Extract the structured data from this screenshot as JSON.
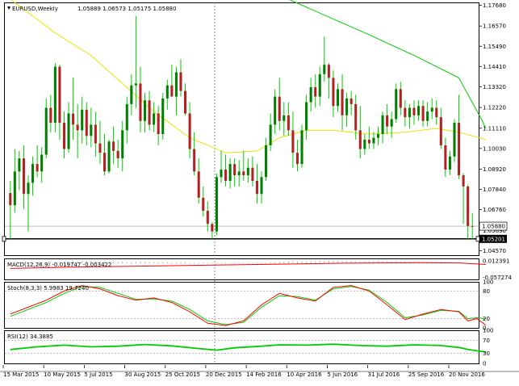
{
  "chart_data": {
    "type": "candlestick",
    "symbol_label": "EURUSD,Weekly",
    "ohlc_label": "1.05889 1.06573 1.05175 1.05880",
    "price_axis": {
      "ticks": [
        "1.17680",
        "1.16570",
        "1.15490",
        "1.14410",
        "1.13320",
        "1.12220",
        "1.11110",
        "1.10030",
        "1.08920",
        "1.07840",
        "1.06760",
        "1.04570"
      ],
      "current_price_label": "1.05880",
      "overlap_label": "1.05690",
      "support_label": "1.05201",
      "ylim": [
        1.0433,
        1.1783
      ]
    },
    "x_axis": {
      "ticks": [
        "15 Mar 2015",
        "10 May 2015",
        "5 Jul 2015",
        "30 Aug 2015",
        "25 Oct 2015",
        "20 Dec 2015",
        "14 Feb 2016",
        "10 Apr 2016",
        "5 Jun 2016",
        "31 Jul 2016",
        "25 Sep 2016",
        "20 Nov 2016"
      ]
    },
    "candles": [
      {
        "o": 1.0765,
        "h": 1.083,
        "l": 1.052,
        "c": 1.07
      },
      {
        "o": 1.07,
        "h": 1.1,
        "l": 1.066,
        "c": 1.088
      },
      {
        "o": 1.088,
        "h": 1.099,
        "l": 1.078,
        "c": 1.095
      },
      {
        "o": 1.095,
        "h": 1.102,
        "l": 1.068,
        "c": 1.076
      },
      {
        "o": 1.076,
        "h": 1.086,
        "l": 1.056,
        "c": 1.082
      },
      {
        "o": 1.082,
        "h": 1.096,
        "l": 1.075,
        "c": 1.092
      },
      {
        "o": 1.092,
        "h": 1.102,
        "l": 1.085,
        "c": 1.088
      },
      {
        "o": 1.088,
        "h": 1.101,
        "l": 1.082,
        "c": 1.097
      },
      {
        "o": 1.097,
        "h": 1.127,
        "l": 1.095,
        "c": 1.122
      },
      {
        "o": 1.122,
        "h": 1.129,
        "l": 1.109,
        "c": 1.114
      },
      {
        "o": 1.114,
        "h": 1.146,
        "l": 1.109,
        "c": 1.144
      },
      {
        "o": 1.144,
        "h": 1.145,
        "l": 1.105,
        "c": 1.114
      },
      {
        "o": 1.114,
        "h": 1.12,
        "l": 1.095,
        "c": 1.1
      },
      {
        "o": 1.1,
        "h": 1.125,
        "l": 1.098,
        "c": 1.119
      },
      {
        "o": 1.119,
        "h": 1.138,
        "l": 1.105,
        "c": 1.113
      },
      {
        "o": 1.113,
        "h": 1.124,
        "l": 1.095,
        "c": 1.11
      },
      {
        "o": 1.11,
        "h": 1.128,
        "l": 1.103,
        "c": 1.121
      },
      {
        "o": 1.121,
        "h": 1.125,
        "l": 1.102,
        "c": 1.107
      },
      {
        "o": 1.107,
        "h": 1.122,
        "l": 1.101,
        "c": 1.113
      },
      {
        "o": 1.113,
        "h": 1.12,
        "l": 1.096,
        "c": 1.103
      },
      {
        "o": 1.103,
        "h": 1.115,
        "l": 1.092,
        "c": 1.098
      },
      {
        "o": 1.098,
        "h": 1.108,
        "l": 1.086,
        "c": 1.088
      },
      {
        "o": 1.088,
        "h": 1.105,
        "l": 1.087,
        "c": 1.104
      },
      {
        "o": 1.104,
        "h": 1.112,
        "l": 1.092,
        "c": 1.099
      },
      {
        "o": 1.099,
        "h": 1.105,
        "l": 1.09,
        "c": 1.095
      },
      {
        "o": 1.095,
        "h": 1.115,
        "l": 1.088,
        "c": 1.11
      },
      {
        "o": 1.11,
        "h": 1.128,
        "l": 1.103,
        "c": 1.124
      },
      {
        "o": 1.124,
        "h": 1.14,
        "l": 1.118,
        "c": 1.134
      },
      {
        "o": 1.134,
        "h": 1.171,
        "l": 1.122,
        "c": 1.135
      },
      {
        "o": 1.135,
        "h": 1.144,
        "l": 1.109,
        "c": 1.115
      },
      {
        "o": 1.115,
        "h": 1.13,
        "l": 1.109,
        "c": 1.126
      },
      {
        "o": 1.126,
        "h": 1.131,
        "l": 1.11,
        "c": 1.113
      },
      {
        "o": 1.113,
        "h": 1.125,
        "l": 1.109,
        "c": 1.119
      },
      {
        "o": 1.119,
        "h": 1.123,
        "l": 1.102,
        "c": 1.108
      },
      {
        "o": 1.108,
        "h": 1.13,
        "l": 1.105,
        "c": 1.127
      },
      {
        "o": 1.127,
        "h": 1.137,
        "l": 1.121,
        "c": 1.134
      },
      {
        "o": 1.134,
        "h": 1.145,
        "l": 1.128,
        "c": 1.128
      },
      {
        "o": 1.128,
        "h": 1.144,
        "l": 1.118,
        "c": 1.141
      },
      {
        "o": 1.141,
        "h": 1.148,
        "l": 1.128,
        "c": 1.131
      },
      {
        "o": 1.131,
        "h": 1.135,
        "l": 1.118,
        "c": 1.119
      },
      {
        "o": 1.119,
        "h": 1.125,
        "l": 1.095,
        "c": 1.1
      },
      {
        "o": 1.1,
        "h": 1.109,
        "l": 1.086,
        "c": 1.088
      },
      {
        "o": 1.088,
        "h": 1.095,
        "l": 1.071,
        "c": 1.074
      },
      {
        "o": 1.074,
        "h": 1.08,
        "l": 1.064,
        "c": 1.067
      },
      {
        "o": 1.067,
        "h": 1.072,
        "l": 1.056,
        "c": 1.06
      },
      {
        "o": 1.06,
        "h": 1.061,
        "l": 1.052,
        "c": 1.056
      },
      {
        "o": 1.056,
        "h": 1.087,
        "l": 1.054,
        "c": 1.085
      },
      {
        "o": 1.085,
        "h": 1.099,
        "l": 1.082,
        "c": 1.089
      },
      {
        "o": 1.089,
        "h": 1.097,
        "l": 1.08,
        "c": 1.083
      },
      {
        "o": 1.083,
        "h": 1.095,
        "l": 1.079,
        "c": 1.092
      },
      {
        "o": 1.092,
        "h": 1.095,
        "l": 1.08,
        "c": 1.086
      },
      {
        "o": 1.086,
        "h": 1.094,
        "l": 1.08,
        "c": 1.088
      },
      {
        "o": 1.088,
        "h": 1.099,
        "l": 1.083,
        "c": 1.086
      },
      {
        "o": 1.086,
        "h": 1.095,
        "l": 1.082,
        "c": 1.09
      },
      {
        "o": 1.09,
        "h": 1.096,
        "l": 1.08,
        "c": 1.083
      },
      {
        "o": 1.083,
        "h": 1.092,
        "l": 1.071,
        "c": 1.076
      },
      {
        "o": 1.076,
        "h": 1.088,
        "l": 1.071,
        "c": 1.085
      },
      {
        "o": 1.085,
        "h": 1.106,
        "l": 1.083,
        "c": 1.102
      },
      {
        "o": 1.102,
        "h": 1.119,
        "l": 1.099,
        "c": 1.113
      },
      {
        "o": 1.113,
        "h": 1.132,
        "l": 1.108,
        "c": 1.128
      },
      {
        "o": 1.128,
        "h": 1.138,
        "l": 1.11,
        "c": 1.115
      },
      {
        "o": 1.115,
        "h": 1.125,
        "l": 1.107,
        "c": 1.118
      },
      {
        "o": 1.118,
        "h": 1.125,
        "l": 1.107,
        "c": 1.11
      },
      {
        "o": 1.11,
        "h": 1.12,
        "l": 1.09,
        "c": 1.098
      },
      {
        "o": 1.098,
        "h": 1.105,
        "l": 1.088,
        "c": 1.092
      },
      {
        "o": 1.092,
        "h": 1.113,
        "l": 1.09,
        "c": 1.11
      },
      {
        "o": 1.11,
        "h": 1.129,
        "l": 1.105,
        "c": 1.125
      },
      {
        "o": 1.125,
        "h": 1.138,
        "l": 1.12,
        "c": 1.133
      },
      {
        "o": 1.133,
        "h": 1.14,
        "l": 1.122,
        "c": 1.128
      },
      {
        "o": 1.128,
        "h": 1.144,
        "l": 1.123,
        "c": 1.14
      },
      {
        "o": 1.14,
        "h": 1.16,
        "l": 1.136,
        "c": 1.145
      },
      {
        "o": 1.145,
        "h": 1.146,
        "l": 1.127,
        "c": 1.138
      },
      {
        "o": 1.138,
        "h": 1.142,
        "l": 1.117,
        "c": 1.123
      },
      {
        "o": 1.123,
        "h": 1.135,
        "l": 1.12,
        "c": 1.132
      },
      {
        "o": 1.132,
        "h": 1.14,
        "l": 1.11,
        "c": 1.118
      },
      {
        "o": 1.118,
        "h": 1.13,
        "l": 1.112,
        "c": 1.127
      },
      {
        "o": 1.127,
        "h": 1.131,
        "l": 1.118,
        "c": 1.124
      },
      {
        "o": 1.124,
        "h": 1.129,
        "l": 1.105,
        "c": 1.11
      },
      {
        "o": 1.11,
        "h": 1.123,
        "l": 1.095,
        "c": 1.1
      },
      {
        "o": 1.1,
        "h": 1.108,
        "l": 1.097,
        "c": 1.105
      },
      {
        "o": 1.105,
        "h": 1.112,
        "l": 1.1,
        "c": 1.103
      },
      {
        "o": 1.103,
        "h": 1.109,
        "l": 1.1,
        "c": 1.106
      },
      {
        "o": 1.106,
        "h": 1.112,
        "l": 1.102,
        "c": 1.108
      },
      {
        "o": 1.108,
        "h": 1.12,
        "l": 1.103,
        "c": 1.118
      },
      {
        "o": 1.118,
        "h": 1.124,
        "l": 1.108,
        "c": 1.112
      },
      {
        "o": 1.112,
        "h": 1.12,
        "l": 1.106,
        "c": 1.116
      },
      {
        "o": 1.116,
        "h": 1.135,
        "l": 1.114,
        "c": 1.132
      },
      {
        "o": 1.132,
        "h": 1.136,
        "l": 1.118,
        "c": 1.122
      },
      {
        "o": 1.122,
        "h": 1.126,
        "l": 1.112,
        "c": 1.117
      },
      {
        "o": 1.117,
        "h": 1.124,
        "l": 1.111,
        "c": 1.122
      },
      {
        "o": 1.122,
        "h": 1.126,
        "l": 1.113,
        "c": 1.118
      },
      {
        "o": 1.118,
        "h": 1.126,
        "l": 1.115,
        "c": 1.123
      },
      {
        "o": 1.123,
        "h": 1.126,
        "l": 1.112,
        "c": 1.115
      },
      {
        "o": 1.115,
        "h": 1.125,
        "l": 1.112,
        "c": 1.12
      },
      {
        "o": 1.12,
        "h": 1.127,
        "l": 1.116,
        "c": 1.122
      },
      {
        "o": 1.122,
        "h": 1.126,
        "l": 1.113,
        "c": 1.117
      },
      {
        "o": 1.117,
        "h": 1.122,
        "l": 1.1,
        "c": 1.102
      },
      {
        "o": 1.102,
        "h": 1.106,
        "l": 1.085,
        "c": 1.089
      },
      {
        "o": 1.089,
        "h": 1.099,
        "l": 1.086,
        "c": 1.096
      },
      {
        "o": 1.096,
        "h": 1.116,
        "l": 1.093,
        "c": 1.114
      },
      {
        "o": 1.114,
        "h": 1.129,
        "l": 1.084,
        "c": 1.086
      },
      {
        "o": 1.086,
        "h": 1.087,
        "l": 1.06,
        "c": 1.08
      },
      {
        "o": 1.08,
        "h": 1.081,
        "l": 1.052,
        "c": 1.0589
      },
      {
        "o": 1.0589,
        "h": 1.0657,
        "l": 1.0518,
        "c": 1.0588
      }
    ],
    "ma_long": {
      "color": "#00cc00",
      "points": [
        [
          62,
          1.18
        ],
        [
          80,
          1.161
        ],
        [
          90,
          1.15
        ],
        [
          100,
          1.138
        ],
        [
          105,
          1.116
        ],
        [
          106,
          1.111
        ]
      ]
    },
    "ma_short": {
      "color": "#e6e600",
      "points": [
        [
          0,
          1.18
        ],
        [
          10,
          1.162
        ],
        [
          18,
          1.15
        ],
        [
          25,
          1.135
        ],
        [
          32,
          1.12
        ],
        [
          40,
          1.106
        ],
        [
          48,
          1.098
        ],
        [
          55,
          1.099
        ],
        [
          60,
          1.106
        ],
        [
          66,
          1.11
        ],
        [
          72,
          1.11
        ],
        [
          80,
          1.108
        ],
        [
          88,
          1.109
        ],
        [
          95,
          1.111
        ],
        [
          100,
          1.109
        ],
        [
          106,
          1.105
        ]
      ]
    },
    "colors": {
      "up": "#008000",
      "down": "#b22222",
      "wick": "#00cc00",
      "upper_indicator": "#ff0000",
      "signal": "#00cc00"
    },
    "macd": {
      "label": "MACD(12,26,9) -0.019747 -0.003422",
      "ticks": [
        "0.012391",
        "-0.057274"
      ],
      "ylim": [
        -0.066,
        0.022
      ],
      "signal_line": [
        [
          0,
          -0.02
        ],
        [
          15,
          -0.014
        ],
        [
          30,
          -0.01
        ],
        [
          45,
          -0.006
        ],
        [
          60,
          -0.002
        ],
        [
          75,
          0.002
        ],
        [
          90,
          0.004
        ],
        [
          100,
          0.003
        ],
        [
          106,
          -0.0034
        ]
      ],
      "histogram": [
        0.0,
        0.001,
        0.002,
        0.003,
        0.003,
        0.004,
        0.005,
        0.006,
        0.006,
        0.007,
        0.008,
        0.008,
        0.009,
        0.009,
        0.01,
        0.011,
        0.011,
        0.012,
        0.012,
        0.012,
        0.011,
        0.011,
        0.01,
        0.01,
        0.009,
        0.009,
        0.008,
        0.008,
        0.008,
        0.008,
        0.007,
        0.007,
        0.007,
        0.007,
        0.007,
        0.007,
        0.006,
        0.006,
        0.006,
        0.006,
        0.005,
        0.005,
        0.005,
        0.005,
        0.004,
        0.004,
        0.004,
        0.004,
        0.004,
        0.004,
        0.004,
        0.004,
        0.004,
        0.004,
        0.004,
        0.004,
        0.004,
        0.004,
        0.005,
        0.006,
        0.007,
        0.008,
        0.009,
        0.01,
        0.01,
        0.01,
        0.01,
        0.01,
        0.011,
        0.011,
        0.012,
        0.012,
        0.012,
        0.012,
        0.011,
        0.011,
        0.011,
        0.01,
        0.01,
        0.01,
        0.01,
        0.01,
        0.01,
        0.009,
        0.009,
        0.009,
        0.009,
        0.009,
        0.009,
        0.008,
        0.008,
        0.008,
        0.008,
        0.008,
        0.007,
        0.007,
        0.007,
        0.006,
        0.006,
        0.005,
        0.005,
        0.004,
        0.003,
        0.002,
        0.001,
        -0.001,
        -0.003
      ]
    },
    "stoch": {
      "label": "Stoch(8,3,3) 5.9983 19.7240",
      "ticks": [
        "100",
        "80",
        "20",
        "0"
      ],
      "ylim": [
        0,
        100
      ],
      "main": [
        [
          0,
          30
        ],
        [
          4,
          45
        ],
        [
          8,
          60
        ],
        [
          12,
          80
        ],
        [
          16,
          92
        ],
        [
          20,
          85
        ],
        [
          24,
          70
        ],
        [
          28,
          60
        ],
        [
          32,
          65
        ],
        [
          36,
          55
        ],
        [
          40,
          35
        ],
        [
          44,
          10
        ],
        [
          48,
          5
        ],
        [
          52,
          15
        ],
        [
          56,
          50
        ],
        [
          60,
          75
        ],
        [
          64,
          65
        ],
        [
          68,
          58
        ],
        [
          72,
          88
        ],
        [
          76,
          92
        ],
        [
          80,
          80
        ],
        [
          84,
          50
        ],
        [
          88,
          18
        ],
        [
          92,
          30
        ],
        [
          96,
          40
        ],
        [
          100,
          35
        ],
        [
          102,
          15
        ],
        [
          104,
          20
        ],
        [
          106,
          6
        ]
      ],
      "signal": [
        [
          0,
          25
        ],
        [
          4,
          40
        ],
        [
          8,
          55
        ],
        [
          12,
          75
        ],
        [
          16,
          90
        ],
        [
          20,
          88
        ],
        [
          24,
          75
        ],
        [
          28,
          62
        ],
        [
          32,
          63
        ],
        [
          36,
          58
        ],
        [
          40,
          40
        ],
        [
          44,
          15
        ],
        [
          48,
          7
        ],
        [
          52,
          12
        ],
        [
          56,
          45
        ],
        [
          60,
          70
        ],
        [
          64,
          68
        ],
        [
          68,
          60
        ],
        [
          72,
          85
        ],
        [
          76,
          90
        ],
        [
          80,
          82
        ],
        [
          84,
          55
        ],
        [
          88,
          22
        ],
        [
          92,
          28
        ],
        [
          96,
          38
        ],
        [
          100,
          36
        ],
        [
          102,
          20
        ],
        [
          104,
          22
        ],
        [
          106,
          19.7
        ]
      ]
    },
    "rsi": {
      "label": "RSI(12) 34.3885",
      "ticks": [
        "100",
        "70",
        "30",
        "0"
      ],
      "ylim": [
        0,
        100
      ],
      "values": [
        [
          0,
          42
        ],
        [
          6,
          50
        ],
        [
          12,
          55
        ],
        [
          18,
          50
        ],
        [
          24,
          52
        ],
        [
          30,
          57
        ],
        [
          36,
          53
        ],
        [
          42,
          45
        ],
        [
          46,
          40
        ],
        [
          50,
          47
        ],
        [
          56,
          52
        ],
        [
          60,
          56
        ],
        [
          66,
          55
        ],
        [
          72,
          58
        ],
        [
          78,
          54
        ],
        [
          84,
          52
        ],
        [
          90,
          56
        ],
        [
          96,
          54
        ],
        [
          100,
          48
        ],
        [
          102,
          42
        ],
        [
          104,
          38
        ],
        [
          106,
          34.39
        ]
      ]
    }
  }
}
